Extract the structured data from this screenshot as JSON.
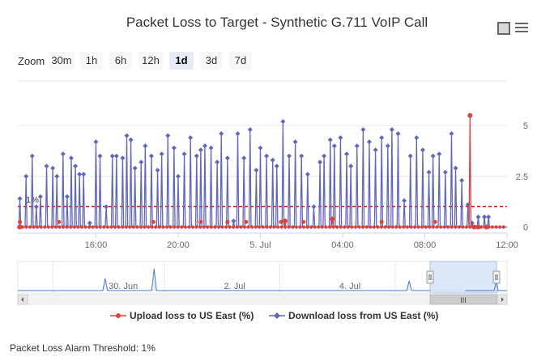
{
  "header": {
    "title": "Packet Loss to Target - Synthetic G.711 VoIP Call"
  },
  "toolbar": {
    "zoom_label": "Zoom",
    "zoom_buttons": [
      "30m",
      "1h",
      "6h",
      "12h",
      "1d",
      "3d",
      "7d"
    ],
    "active_zoom": "1d",
    "export_icon": "square-icon",
    "menu_icon": "hamburger-menu-icon"
  },
  "threshold": {
    "label": "1%",
    "value": 1,
    "color": "#cc0000"
  },
  "navigator": {
    "labels": [
      "30. Jun",
      "2. Jul",
      "4. Jul"
    ],
    "handle_grip": "III"
  },
  "legend": {
    "upload_label": "Upload loss to US East (%)",
    "download_label": "Download loss from US East (%)"
  },
  "footer": {
    "text": "Packet Loss Alarm Threshold: 1%"
  },
  "colors": {
    "upload": "#d9443f",
    "download": "#6068b8",
    "threshold": "#cc0000",
    "navigator_fill": "#d6e6f8"
  },
  "chart_data": {
    "type": "line",
    "title": "Packet Loss to Target - Synthetic G.711 VoIP Call",
    "xlabel": "",
    "ylabel": "",
    "x_tick_labels": [
      "16:00",
      "20:00",
      "5. Jul",
      "04:00",
      "08:00",
      "12:00"
    ],
    "x_tick_hours": [
      16,
      20,
      24,
      28,
      32,
      36
    ],
    "x_range_hours": [
      12.2,
      36
    ],
    "y_ticks": [
      0,
      2.5,
      5
    ],
    "ylim": [
      -0.3,
      7.2
    ],
    "y_axis_side": "right",
    "series": [
      {
        "name": "Upload loss to US East (%)",
        "type": "line",
        "color": "#d9443f",
        "x": [
          12.3,
          25.2,
          27.5,
          34.2,
          34.4,
          34.6,
          35.0
        ],
        "values": [
          0,
          0.3,
          0.4,
          5.5,
          0,
          0,
          0
        ],
        "mode": "spikes_from_zero",
        "small_markers_x": [
          12.3,
          14.2,
          18.8,
          21.1,
          22.4,
          23.3,
          25.0,
          26.1,
          29.9,
          32.5
        ]
      },
      {
        "name": "Download loss from US East (%)",
        "type": "line",
        "color": "#6068b8",
        "x": [
          12.3,
          12.6,
          12.9,
          13.1,
          13.3,
          13.6,
          13.9,
          14.1,
          14.4,
          14.6,
          14.8,
          15.0,
          15.2,
          15.4,
          15.7,
          16.0,
          16.2,
          16.5,
          16.8,
          17.0,
          17.3,
          17.5,
          17.7,
          17.9,
          18.2,
          18.4,
          18.7,
          19.0,
          19.2,
          19.5,
          19.8,
          20.0,
          20.3,
          20.6,
          20.9,
          21.1,
          21.3,
          21.6,
          21.9,
          22.1,
          22.4,
          22.7,
          22.9,
          23.2,
          23.5,
          23.8,
          24.0,
          24.3,
          24.6,
          24.8,
          25.1,
          25.4,
          25.7,
          26.0,
          26.3,
          26.6,
          26.9,
          27.1,
          27.4,
          27.6,
          27.9,
          28.2,
          28.4,
          28.7,
          29.0,
          29.3,
          29.6,
          29.9,
          30.2,
          30.4,
          30.7,
          31.0,
          31.3,
          31.6,
          31.9,
          32.2,
          32.4,
          32.7,
          33.0,
          33.3,
          33.5,
          33.8,
          34.1,
          34.3,
          34.6,
          34.9,
          35.1
        ],
        "values": [
          1.4,
          2.5,
          3.5,
          1.0,
          1.5,
          3.0,
          2.9,
          2.5,
          3.6,
          1.5,
          3.4,
          3.0,
          2.6,
          2.6,
          0.2,
          4.2,
          3.5,
          1.0,
          3.5,
          3.5,
          3.4,
          4.5,
          4.3,
          2.9,
          3.2,
          4.0,
          3.5,
          2.8,
          3.6,
          4.5,
          3.9,
          2.5,
          3.6,
          4.4,
          3.5,
          3.8,
          4.0,
          3.9,
          3.2,
          4.6,
          3.4,
          0.3,
          4.6,
          3.4,
          4.8,
          2.8,
          3.9,
          3.5,
          3.3,
          3.0,
          5.2,
          3.5,
          4.2,
          3.5,
          2.6,
          1.0,
          3.2,
          3.5,
          4.3,
          4.0,
          4.4,
          3.6,
          3.0,
          4.0,
          4.8,
          4.2,
          3.8,
          4.4,
          4.0,
          4.8,
          4.6,
          1.3,
          3.5,
          4.4,
          3.8,
          2.7,
          3.5,
          3.6,
          2.7,
          4.6,
          2.9,
          2.3,
          1.1,
          0.2,
          0.5,
          0.5,
          0.5
        ],
        "mode": "spikes_from_zero"
      }
    ],
    "threshold_line": {
      "value": 1,
      "label": "1%",
      "style": "dashed",
      "color": "#cc0000"
    },
    "navigator": {
      "x_labels": [
        "30. Jun",
        "2. Jul",
        "4. Jul"
      ],
      "series": {
        "name": "Download loss from US East (%)",
        "spikes": [
          {
            "day": 1.25,
            "value": 2.5
          },
          {
            "day": 1.95,
            "value": 4.5
          },
          {
            "day": 5.6,
            "value": 2.0
          }
        ]
      },
      "selected_range": "last 1 day"
    }
  }
}
